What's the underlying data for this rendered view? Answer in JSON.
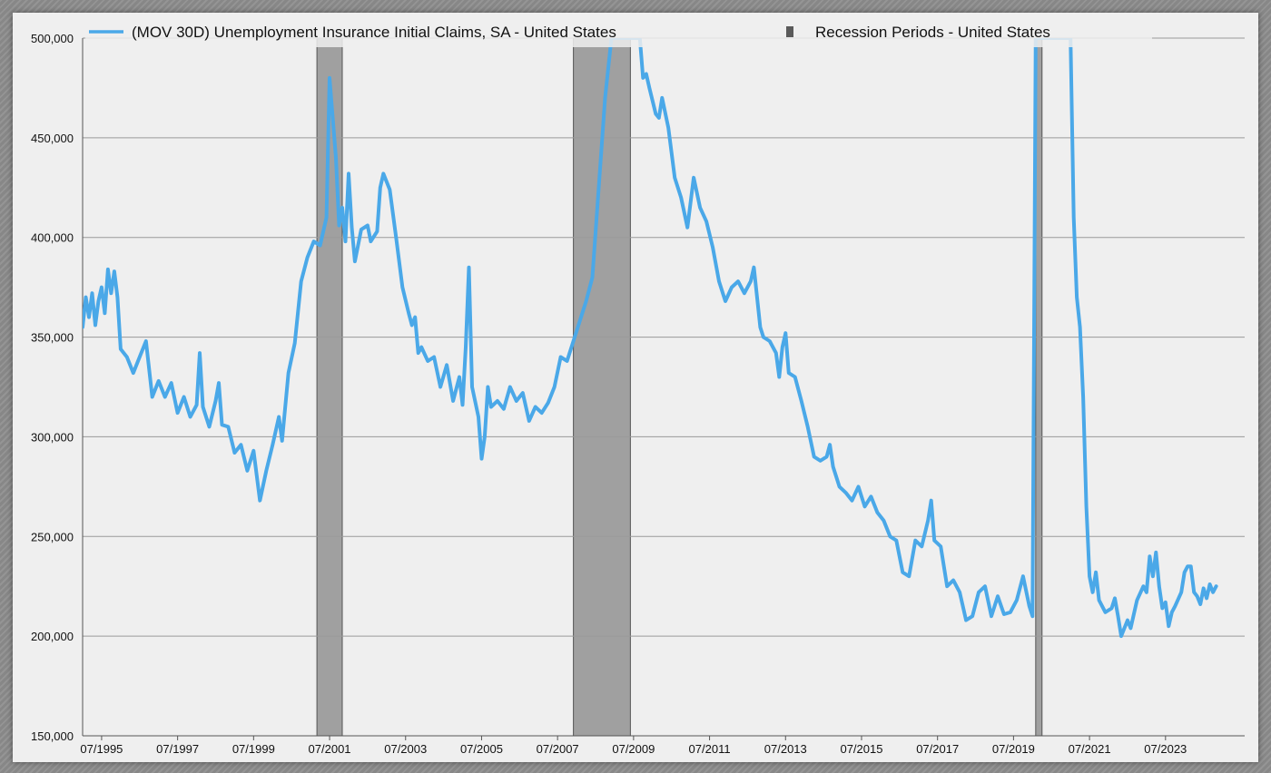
{
  "chart_data": {
    "type": "line",
    "title": "",
    "legend": {
      "placement": "top",
      "entries": [
        {
          "label": "(MOV 30D) Unemployment Insurance Initial Claims, SA - United States",
          "color": "#4aa8e8",
          "kind": "line"
        },
        {
          "label": "Recession Periods - United States",
          "color": "#5a5a5a",
          "kind": "square"
        }
      ]
    },
    "x_axis": {
      "range": [
        "1995-01",
        "2025-08"
      ],
      "tick_labels": [
        "07/1995",
        "07/1997",
        "07/1999",
        "07/2001",
        "07/2003",
        "07/2005",
        "07/2007",
        "07/2009",
        "07/2011",
        "07/2013",
        "07/2015",
        "07/2017",
        "07/2019",
        "07/2021",
        "07/2023"
      ]
    },
    "y_axis": {
      "range": [
        150000,
        500000
      ],
      "ticks": [
        150000,
        200000,
        250000,
        300000,
        350000,
        400000,
        450000,
        500000
      ],
      "tick_labels": [
        "150,000",
        "200,000",
        "250,000",
        "300,000",
        "350,000",
        "400,000",
        "450,000",
        "500,000"
      ],
      "grid": true
    },
    "recession_periods": [
      {
        "start": "2001-03",
        "end": "2001-11"
      },
      {
        "start": "2007-12",
        "end": "2009-06"
      },
      {
        "start": "2020-02",
        "end": "2020-04"
      }
    ],
    "series": [
      {
        "name": "(MOV 30D) Unemployment Insurance Initial Claims, SA - United States",
        "color": "#4aa8e8",
        "points": [
          [
            "1995-01",
            355000
          ],
          [
            "1995-02",
            370000
          ],
          [
            "1995-03",
            360000
          ],
          [
            "1995-04",
            372000
          ],
          [
            "1995-05",
            356000
          ],
          [
            "1995-06",
            368000
          ],
          [
            "1995-07",
            375000
          ],
          [
            "1995-08",
            362000
          ],
          [
            "1995-09",
            384000
          ],
          [
            "1995-10",
            372000
          ],
          [
            "1995-11",
            383000
          ],
          [
            "1995-12",
            370000
          ],
          [
            "1996-01",
            344000
          ],
          [
            "1996-03",
            340000
          ],
          [
            "1996-05",
            332000
          ],
          [
            "1996-07",
            340000
          ],
          [
            "1996-09",
            348000
          ],
          [
            "1996-11",
            320000
          ],
          [
            "1997-01",
            328000
          ],
          [
            "1997-03",
            320000
          ],
          [
            "1997-05",
            327000
          ],
          [
            "1997-07",
            312000
          ],
          [
            "1997-09",
            320000
          ],
          [
            "1997-11",
            310000
          ],
          [
            "1998-01",
            316000
          ],
          [
            "1998-02",
            342000
          ],
          [
            "1998-03",
            315000
          ],
          [
            "1998-05",
            305000
          ],
          [
            "1998-07",
            318000
          ],
          [
            "1998-08",
            327000
          ],
          [
            "1998-09",
            306000
          ],
          [
            "1998-11",
            305000
          ],
          [
            "1999-01",
            292000
          ],
          [
            "1999-03",
            296000
          ],
          [
            "1999-05",
            283000
          ],
          [
            "1999-07",
            293000
          ],
          [
            "1999-09",
            268000
          ],
          [
            "1999-11",
            283000
          ],
          [
            "2000-01",
            296000
          ],
          [
            "2000-03",
            310000
          ],
          [
            "2000-04",
            298000
          ],
          [
            "2000-06",
            332000
          ],
          [
            "2000-08",
            347000
          ],
          [
            "2000-10",
            378000
          ],
          [
            "2000-12",
            390000
          ],
          [
            "2001-02",
            398000
          ],
          [
            "2001-04",
            396000
          ],
          [
            "2001-06",
            410000
          ],
          [
            "2001-07",
            480000
          ],
          [
            "2001-09",
            440000
          ],
          [
            "2001-10",
            406000
          ],
          [
            "2001-11",
            415000
          ],
          [
            "2001-12",
            398000
          ],
          [
            "2002-01",
            432000
          ],
          [
            "2002-02",
            405000
          ],
          [
            "2002-03",
            388000
          ],
          [
            "2002-05",
            404000
          ],
          [
            "2002-07",
            406000
          ],
          [
            "2002-08",
            398000
          ],
          [
            "2002-10",
            403000
          ],
          [
            "2002-11",
            425000
          ],
          [
            "2002-12",
            432000
          ],
          [
            "2003-02",
            424000
          ],
          [
            "2003-04",
            400000
          ],
          [
            "2003-06",
            375000
          ],
          [
            "2003-08",
            362000
          ],
          [
            "2003-09",
            356000
          ],
          [
            "2003-10",
            360000
          ],
          [
            "2003-11",
            342000
          ],
          [
            "2003-12",
            345000
          ],
          [
            "2004-02",
            338000
          ],
          [
            "2004-04",
            340000
          ],
          [
            "2004-06",
            325000
          ],
          [
            "2004-08",
            336000
          ],
          [
            "2004-10",
            318000
          ],
          [
            "2004-12",
            330000
          ],
          [
            "2005-01",
            316000
          ],
          [
            "2005-02",
            345000
          ],
          [
            "2005-03",
            385000
          ],
          [
            "2005-04",
            325000
          ],
          [
            "2005-06",
            310000
          ],
          [
            "2005-07",
            289000
          ],
          [
            "2005-08",
            300000
          ],
          [
            "2005-09",
            325000
          ],
          [
            "2005-10",
            315000
          ],
          [
            "2005-12",
            318000
          ],
          [
            "2006-02",
            314000
          ],
          [
            "2006-04",
            325000
          ],
          [
            "2006-06",
            318000
          ],
          [
            "2006-08",
            322000
          ],
          [
            "2006-10",
            308000
          ],
          [
            "2006-12",
            315000
          ],
          [
            "2007-02",
            312000
          ],
          [
            "2007-04",
            317000
          ],
          [
            "2007-06",
            325000
          ],
          [
            "2007-08",
            340000
          ],
          [
            "2007-10",
            338000
          ],
          [
            "2007-12",
            348000
          ],
          [
            "2008-02",
            358000
          ],
          [
            "2008-04",
            368000
          ],
          [
            "2008-06",
            380000
          ],
          [
            "2008-08",
            425000
          ],
          [
            "2008-10",
            470000
          ],
          [
            "2008-12",
            500000
          ],
          [
            "2009-09",
            500000
          ],
          [
            "2009-10",
            480000
          ],
          [
            "2009-11",
            482000
          ],
          [
            "2009-12",
            475000
          ],
          [
            "2010-02",
            462000
          ],
          [
            "2010-03",
            460000
          ],
          [
            "2010-04",
            470000
          ],
          [
            "2010-06",
            455000
          ],
          [
            "2010-08",
            430000
          ],
          [
            "2010-10",
            420000
          ],
          [
            "2010-12",
            405000
          ],
          [
            "2011-02",
            430000
          ],
          [
            "2011-04",
            415000
          ],
          [
            "2011-06",
            408000
          ],
          [
            "2011-08",
            395000
          ],
          [
            "2011-10",
            378000
          ],
          [
            "2011-12",
            368000
          ],
          [
            "2012-02",
            375000
          ],
          [
            "2012-04",
            378000
          ],
          [
            "2012-06",
            372000
          ],
          [
            "2012-08",
            378000
          ],
          [
            "2012-09",
            385000
          ],
          [
            "2012-10",
            370000
          ],
          [
            "2012-11",
            355000
          ],
          [
            "2012-12",
            350000
          ],
          [
            "2013-02",
            348000
          ],
          [
            "2013-04",
            342000
          ],
          [
            "2013-05",
            330000
          ],
          [
            "2013-06",
            345000
          ],
          [
            "2013-07",
            352000
          ],
          [
            "2013-08",
            332000
          ],
          [
            "2013-10",
            330000
          ],
          [
            "2013-12",
            318000
          ],
          [
            "2014-02",
            305000
          ],
          [
            "2014-04",
            290000
          ],
          [
            "2014-06",
            288000
          ],
          [
            "2014-08",
            290000
          ],
          [
            "2014-09",
            296000
          ],
          [
            "2014-10",
            285000
          ],
          [
            "2014-12",
            275000
          ],
          [
            "2015-02",
            272000
          ],
          [
            "2015-04",
            268000
          ],
          [
            "2015-06",
            275000
          ],
          [
            "2015-08",
            265000
          ],
          [
            "2015-10",
            270000
          ],
          [
            "2015-12",
            262000
          ],
          [
            "2016-02",
            258000
          ],
          [
            "2016-04",
            250000
          ],
          [
            "2016-06",
            248000
          ],
          [
            "2016-08",
            232000
          ],
          [
            "2016-10",
            230000
          ],
          [
            "2016-12",
            248000
          ],
          [
            "2017-02",
            245000
          ],
          [
            "2017-04",
            258000
          ],
          [
            "2017-05",
            268000
          ],
          [
            "2017-06",
            248000
          ],
          [
            "2017-08",
            245000
          ],
          [
            "2017-10",
            225000
          ],
          [
            "2017-12",
            228000
          ],
          [
            "2018-02",
            222000
          ],
          [
            "2018-04",
            208000
          ],
          [
            "2018-06",
            210000
          ],
          [
            "2018-08",
            222000
          ],
          [
            "2018-10",
            225000
          ],
          [
            "2018-12",
            210000
          ],
          [
            "2019-02",
            220000
          ],
          [
            "2019-04",
            211000
          ],
          [
            "2019-06",
            212000
          ],
          [
            "2019-08",
            218000
          ],
          [
            "2019-10",
            230000
          ],
          [
            "2019-12",
            215000
          ],
          [
            "2020-01",
            210000
          ],
          [
            "2020-02",
            500000
          ],
          [
            "2021-01",
            500000
          ],
          [
            "2021-02",
            410000
          ],
          [
            "2021-03",
            370000
          ],
          [
            "2021-04",
            355000
          ],
          [
            "2021-05",
            320000
          ],
          [
            "2021-06",
            265000
          ],
          [
            "2021-07",
            230000
          ],
          [
            "2021-08",
            222000
          ],
          [
            "2021-09",
            232000
          ],
          [
            "2021-10",
            218000
          ],
          [
            "2021-12",
            212000
          ],
          [
            "2022-02",
            214000
          ],
          [
            "2022-03",
            219000
          ],
          [
            "2022-04",
            210000
          ],
          [
            "2022-05",
            200000
          ],
          [
            "2022-07",
            208000
          ],
          [
            "2022-08",
            204000
          ],
          [
            "2022-10",
            218000
          ],
          [
            "2022-12",
            225000
          ],
          [
            "2023-01",
            222000
          ],
          [
            "2023-02",
            240000
          ],
          [
            "2023-03",
            230000
          ],
          [
            "2023-04",
            242000
          ],
          [
            "2023-05",
            225000
          ],
          [
            "2023-06",
            214000
          ],
          [
            "2023-07",
            217000
          ],
          [
            "2023-08",
            205000
          ],
          [
            "2023-09",
            212000
          ],
          [
            "2023-10",
            215000
          ],
          [
            "2023-12",
            222000
          ],
          [
            "2024-01",
            232000
          ],
          [
            "2024-02",
            235000
          ],
          [
            "2024-03",
            235000
          ],
          [
            "2024-04",
            222000
          ],
          [
            "2024-05",
            220000
          ],
          [
            "2024-06",
            216000
          ],
          [
            "2024-07",
            224000
          ],
          [
            "2024-08",
            219000
          ],
          [
            "2024-09",
            226000
          ],
          [
            "2024-10",
            222000
          ],
          [
            "2024-11",
            225000
          ]
        ]
      }
    ]
  }
}
